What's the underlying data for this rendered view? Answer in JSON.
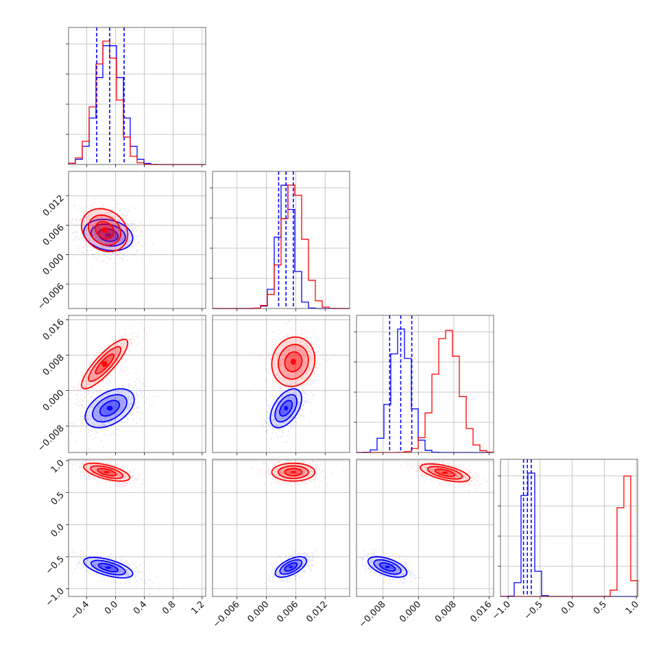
{
  "chart_data": {
    "type": "corner",
    "grid": true,
    "colors": {
      "series_a": "#0000ff",
      "series_b": "#ff0000"
    },
    "parameters": [
      {
        "range": [
          -0.65,
          1.25
        ],
        "ticks": [
          -0.4,
          0.0,
          0.4,
          0.8,
          1.2
        ],
        "tick_labels": [
          "−0.4",
          "0.0",
          "0.4",
          "0.8",
          "1.2"
        ],
        "mean_a": -0.08,
        "sd_a": 0.17,
        "mean_b": -0.12,
        "sd_b": 0.16,
        "quantiles_a": [
          -0.26,
          -0.08,
          0.12
        ]
      },
      {
        "range": [
          -0.011,
          0.017
        ],
        "ticks": [
          -0.006,
          0.0,
          0.006,
          0.012
        ],
        "tick_labels": [
          "−0.006",
          "0.000",
          "0.006",
          "0.012"
        ],
        "mean_a": 0.004,
        "sd_a": 0.0016,
        "mean_b": 0.0055,
        "sd_b": 0.0022,
        "quantiles_a": [
          0.0025,
          0.004,
          0.0055
        ]
      },
      {
        "range": [
          -0.014,
          0.017
        ],
        "ticks": [
          -0.008,
          0.0,
          0.008,
          0.016
        ],
        "tick_labels": [
          "−0.008",
          "0.000",
          "0.008",
          "0.016"
        ],
        "mean_a": -0.004,
        "sd_a": 0.0022,
        "mean_b": 0.0065,
        "sd_b": 0.0028,
        "quantiles_a": [
          -0.0065,
          -0.004,
          -0.0015
        ]
      },
      {
        "range": [
          -1.12,
          1.02
        ],
        "ticks": [
          -1.0,
          -0.5,
          0.0,
          0.5,
          1.0
        ],
        "tick_labels": [
          "−1.0",
          "−0.5",
          "0.0",
          "0.5",
          "1.0"
        ],
        "mean_a": -0.68,
        "sd_a": 0.08,
        "mean_b": 0.82,
        "sd_b": 0.07,
        "quantiles_a": [
          -0.76,
          -0.7,
          -0.64
        ]
      }
    ],
    "pairs": {
      "1-0": {
        "a_center": [
          -0.1,
          0.004
        ],
        "a_rho": -0.2,
        "b_center": [
          -0.15,
          0.005
        ],
        "b_rho": -0.2
      },
      "2-0": {
        "a_center": [
          -0.08,
          -0.004
        ],
        "a_rho": 0.45,
        "b_center": [
          -0.15,
          0.006
        ],
        "b_rho": 0.85
      },
      "2-1": {
        "a_center": [
          0.004,
          -0.004
        ],
        "a_rho": 0.5,
        "b_center": [
          0.0055,
          0.0065
        ],
        "b_rho": 0.1
      },
      "3-0": {
        "a_center": [
          -0.1,
          -0.67
        ],
        "a_rho": -0.6,
        "b_center": [
          -0.12,
          0.82
        ],
        "b_rho": -0.6
      },
      "3-1": {
        "a_center": [
          0.005,
          -0.66
        ],
        "a_rho": 0.6,
        "b_center": [
          0.0055,
          0.82
        ],
        "b_rho": 0.0
      },
      "3-2": {
        "a_center": [
          -0.007,
          -0.66
        ],
        "a_rho": -0.55,
        "b_center": [
          0.006,
          0.81
        ],
        "b_rho": -0.6
      }
    }
  }
}
